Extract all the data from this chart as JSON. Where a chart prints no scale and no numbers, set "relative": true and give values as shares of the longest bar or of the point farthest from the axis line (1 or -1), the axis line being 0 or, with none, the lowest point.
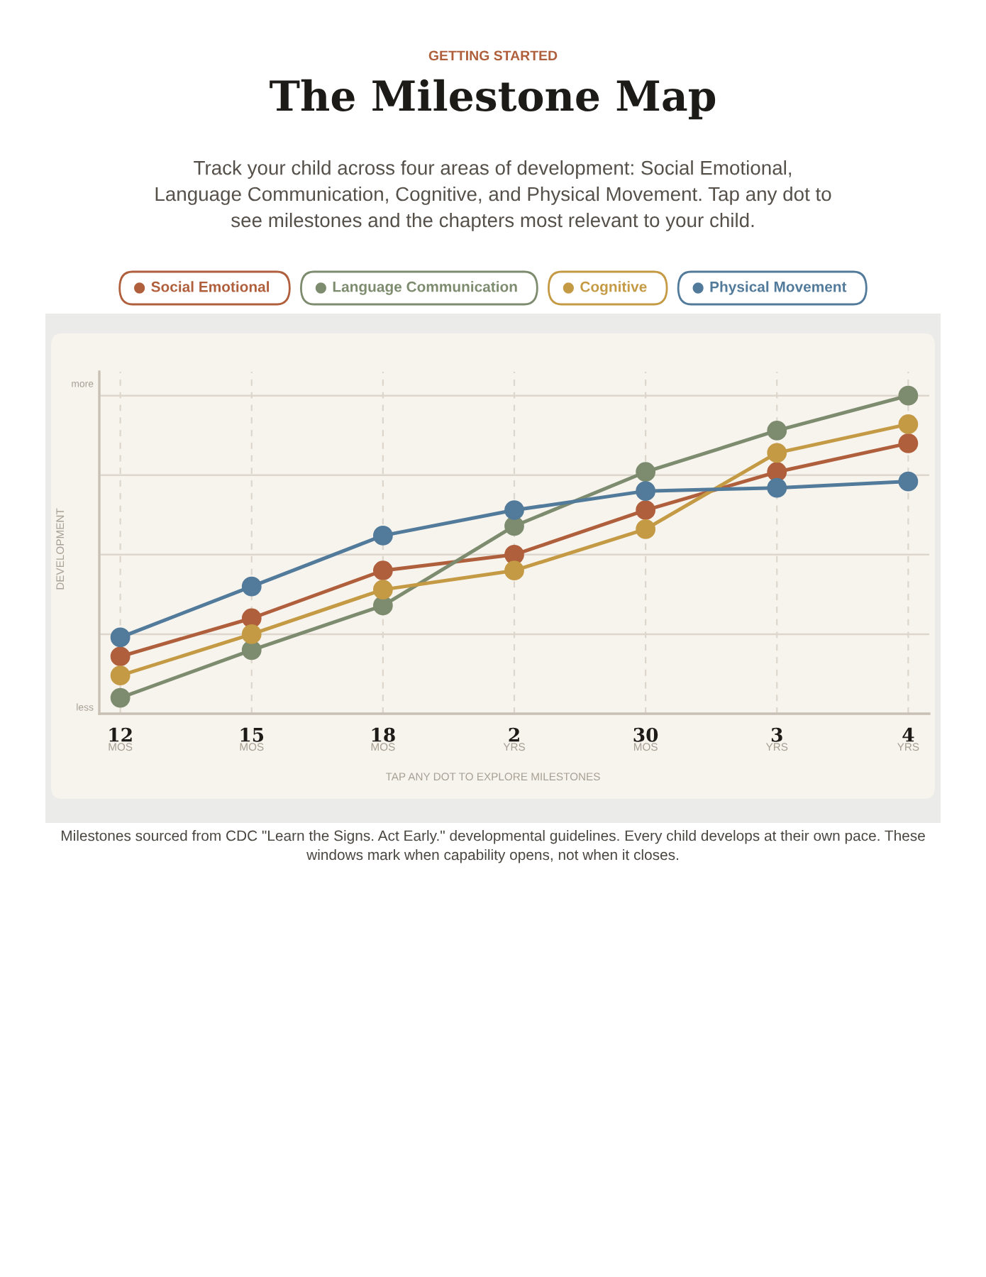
{
  "chart_data": {
    "type": "line",
    "title": "The Milestone Map",
    "subtitle": "Track your child across four areas of development: Social Emotional, Language Communication, Cognitive, and Physical Movement. Tap any dot to see milestones and the chapters most relevant to your child.",
    "annotations": [
      "GETTING STARTED",
      "more",
      "less",
      "Milestones sourced from CDC \"Learn the Signs. Act Early.\" developmental guidelines. Every child develops at their own pace. These windows mark when capability opens, not when it closes."
    ],
    "xlabel": "TAP ANY DOT TO EXPLORE MILESTONES",
    "ylabel": "DEVELOPMENT",
    "categories": [
      "12\nMOS",
      "15\nMOS",
      "18\nMOS",
      "2\nYRS",
      "30\nMOS",
      "3\nYRS",
      "4\nYRS"
    ],
    "relative": true,
    "grid": true,
    "legend": "top",
    "marker": "circle",
    "line_style": "solid",
    "series": [
      {
        "name": "Social Emotional",
        "color": "#b05f3c",
        "values": [
          0.18,
          0.3,
          0.45,
          0.5,
          0.64,
          0.76,
          0.85
        ]
      },
      {
        "name": "Language Communication",
        "color": "#7d8b6e",
        "values": [
          0.05,
          0.2,
          0.34,
          0.59,
          0.76,
          0.89,
          1.0
        ]
      },
      {
        "name": "Cognitive",
        "color": "#c49a45",
        "values": [
          0.12,
          0.25,
          0.39,
          0.45,
          0.58,
          0.82,
          0.91
        ]
      },
      {
        "name": "Physical Movement",
        "color": "#527a9a",
        "values": [
          0.24,
          0.4,
          0.56,
          0.64,
          0.7,
          0.71,
          0.73
        ]
      }
    ]
  }
}
